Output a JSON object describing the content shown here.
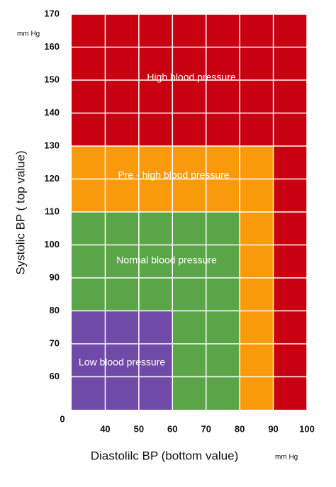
{
  "chart_data": {
    "type": "region",
    "x_label": "Diastolilc BP (bottom value)",
    "y_label": "Systolic BP ( top value)",
    "x_unit": "mm Hg",
    "y_unit": "mm Hg",
    "origin_label": "0",
    "xlim": [
      30,
      100
    ],
    "ylim": [
      50,
      170
    ],
    "xticks": [
      40,
      50,
      60,
      70,
      80,
      90,
      100
    ],
    "yticks": [
      60,
      70,
      80,
      90,
      100,
      110,
      120,
      130,
      140,
      150,
      160,
      170
    ],
    "grid": true,
    "grid_color": "#ffffff",
    "regions": [
      {
        "label": "High blood pressure",
        "color": "#c8000f",
        "x": [
          30,
          100
        ],
        "y": [
          50,
          170
        ]
      },
      {
        "label": "Pre - high blood pressure",
        "color": "#f89a0c",
        "x": [
          30,
          90
        ],
        "y": [
          50,
          130
        ]
      },
      {
        "label": "Normal blood pressure",
        "color": "#5aa548",
        "x": [
          30,
          80
        ],
        "y": [
          50,
          110
        ]
      },
      {
        "label": "Low blood pressure",
        "color": "#6f4aa6",
        "x": [
          30,
          60
        ],
        "y": [
          50,
          80
        ]
      }
    ]
  }
}
